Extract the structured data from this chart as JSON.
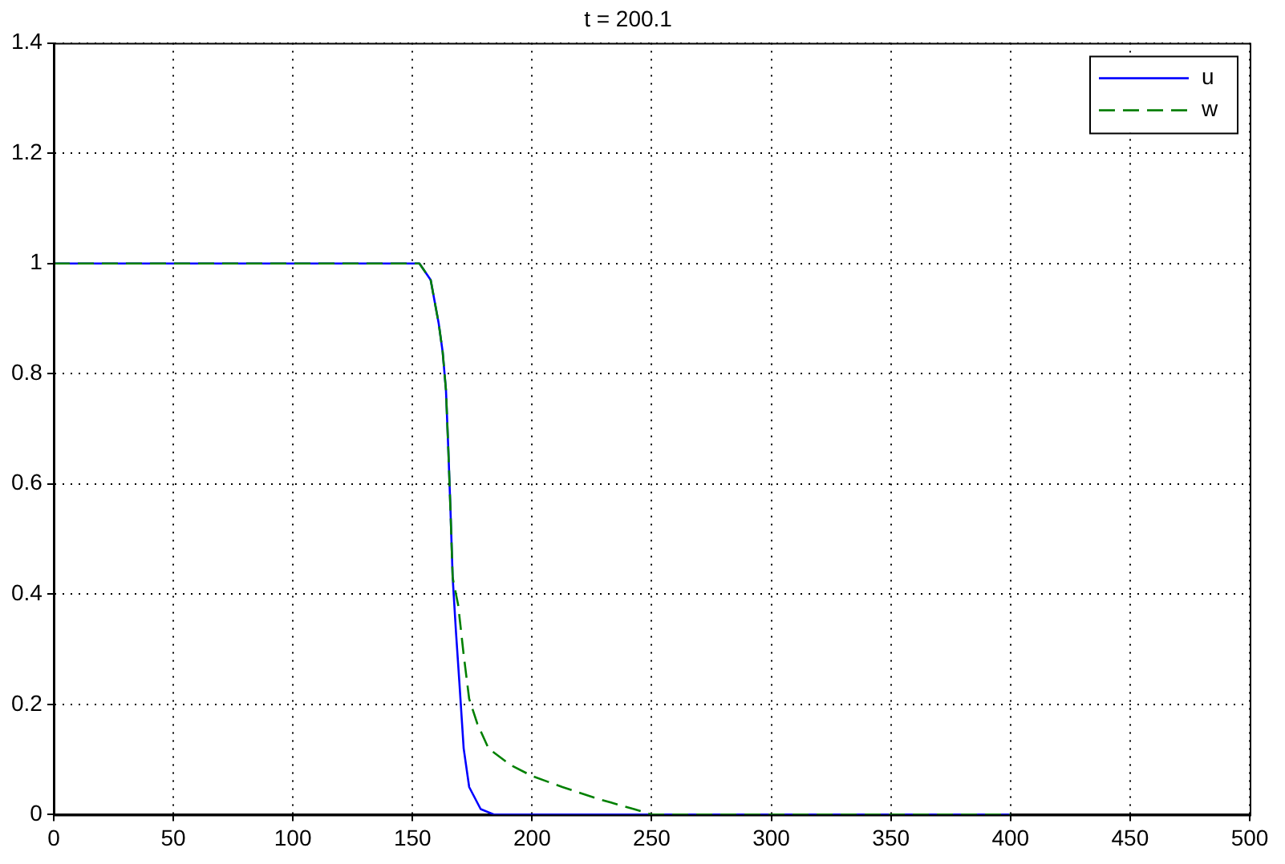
{
  "chart_data": {
    "type": "line",
    "title": "t = 200.1",
    "xlim": [
      0,
      500
    ],
    "xticks": [
      0,
      50,
      100,
      150,
      200,
      250,
      300,
      350,
      400,
      450,
      500
    ],
    "ylim": [
      0,
      1.4
    ],
    "yticks": [
      0,
      0.2,
      0.4,
      0.6,
      0.8,
      1,
      1.2,
      1.4
    ],
    "grid": true,
    "legend": "top right",
    "marker": "none",
    "series": [
      {
        "name": "u",
        "color": "#0000ff",
        "line_style": "solid",
        "x": [
          0,
          152.9,
          157.6,
          161,
          162.6,
          164,
          165,
          165.9,
          166.8,
          168.2,
          169.6,
          171.4,
          173.7,
          178.5,
          184.2,
          400
        ],
        "values": [
          1,
          1,
          0.97,
          0.89,
          0.84,
          0.77,
          0.66,
          0.55,
          0.43,
          0.33,
          0.24,
          0.12,
          0.05,
          0.01,
          0,
          0
        ]
      },
      {
        "name": "w",
        "color": "#008000",
        "line_style": "dashed",
        "x": [
          0,
          152.9,
          157.6,
          161,
          162.6,
          164,
          165,
          165.9,
          166.8,
          169.1,
          171.4,
          173.7,
          177.1,
          181.8,
          191,
          200,
          212.7,
          226.5,
          242.6,
          250,
          400
        ],
        "values": [
          1,
          1,
          0.97,
          0.89,
          0.84,
          0.77,
          0.66,
          0.55,
          0.43,
          0.38,
          0.29,
          0.21,
          0.165,
          0.12,
          0.09,
          0.07,
          0.05,
          0.03,
          0.01,
          0,
          0
        ]
      }
    ]
  }
}
